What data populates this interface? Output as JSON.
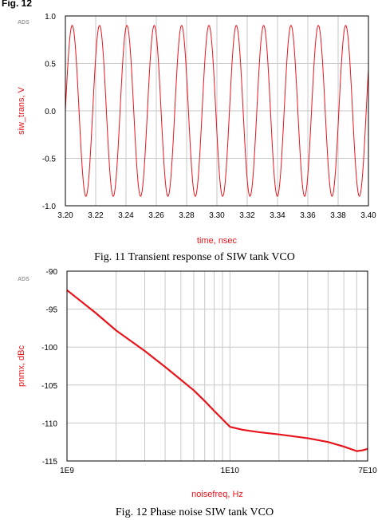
{
  "heading_fragment": "Fig. 12",
  "charts": [
    {
      "ads_label": "ADS",
      "caption": "Fig. 11 Transient response of SIW tank VCO",
      "chart_data": {
        "type": "line",
        "xlabel": "time, nsec",
        "ylabel": "siw_trans, V",
        "xlim": [
          3.2,
          3.4
        ],
        "ylim": [
          -1.0,
          1.0
        ],
        "x_ticks": [
          "3.20",
          "3.22",
          "3.24",
          "3.26",
          "3.28",
          "3.30",
          "3.32",
          "3.34",
          "3.36",
          "3.38",
          "3.40"
        ],
        "y_ticks": [
          "1.0",
          "0.5",
          "0.0",
          "-0.5",
          "-1.0"
        ],
        "grid": true,
        "series_color": "#e8141c",
        "waveform": {
          "shape": "sine",
          "amplitude": 0.9,
          "period_ns": 0.01805,
          "first_peak_ns": 3.2045
        }
      }
    },
    {
      "ads_label": "ADS",
      "caption": "Fig. 12 Phase noise SIW tank VCO",
      "chart_data": {
        "type": "line",
        "scale_x": "log",
        "xlabel": "noisefreq, Hz",
        "ylabel": "pnmx, dBc",
        "xlim": [
          1000000000.0,
          70000000000.0
        ],
        "ylim": [
          -115,
          -90
        ],
        "x_ticks": [
          {
            "value": 1000000000.0,
            "label": "1E9"
          },
          {
            "value": 10000000000.0,
            "label": "1E10"
          },
          {
            "value": 70000000000.0,
            "label": "7E10"
          }
        ],
        "y_ticks": [
          "-90",
          "-95",
          "-100",
          "-105",
          "-110",
          "-115"
        ],
        "grid": true,
        "series_color": "#e8141c",
        "points": [
          [
            1000000000.0,
            -92.5
          ],
          [
            1500000000.0,
            -95.5
          ],
          [
            2000000000.0,
            -97.8
          ],
          [
            3000000000.0,
            -100.5
          ],
          [
            4000000000.0,
            -102.6
          ],
          [
            5000000000.0,
            -104.3
          ],
          [
            6000000000.0,
            -105.7
          ],
          [
            7000000000.0,
            -107.1
          ],
          [
            8000000000.0,
            -108.4
          ],
          [
            9000000000.0,
            -109.5
          ],
          [
            10000000000.0,
            -110.5
          ],
          [
            12000000000.0,
            -110.9
          ],
          [
            15000000000.0,
            -111.2
          ],
          [
            20000000000.0,
            -111.5
          ],
          [
            30000000000.0,
            -112.0
          ],
          [
            40000000000.0,
            -112.5
          ],
          [
            50000000000.0,
            -113.1
          ],
          [
            60000000000.0,
            -113.7
          ],
          [
            65000000000.0,
            -113.6
          ],
          [
            70000000000.0,
            -113.4
          ]
        ]
      }
    }
  ]
}
